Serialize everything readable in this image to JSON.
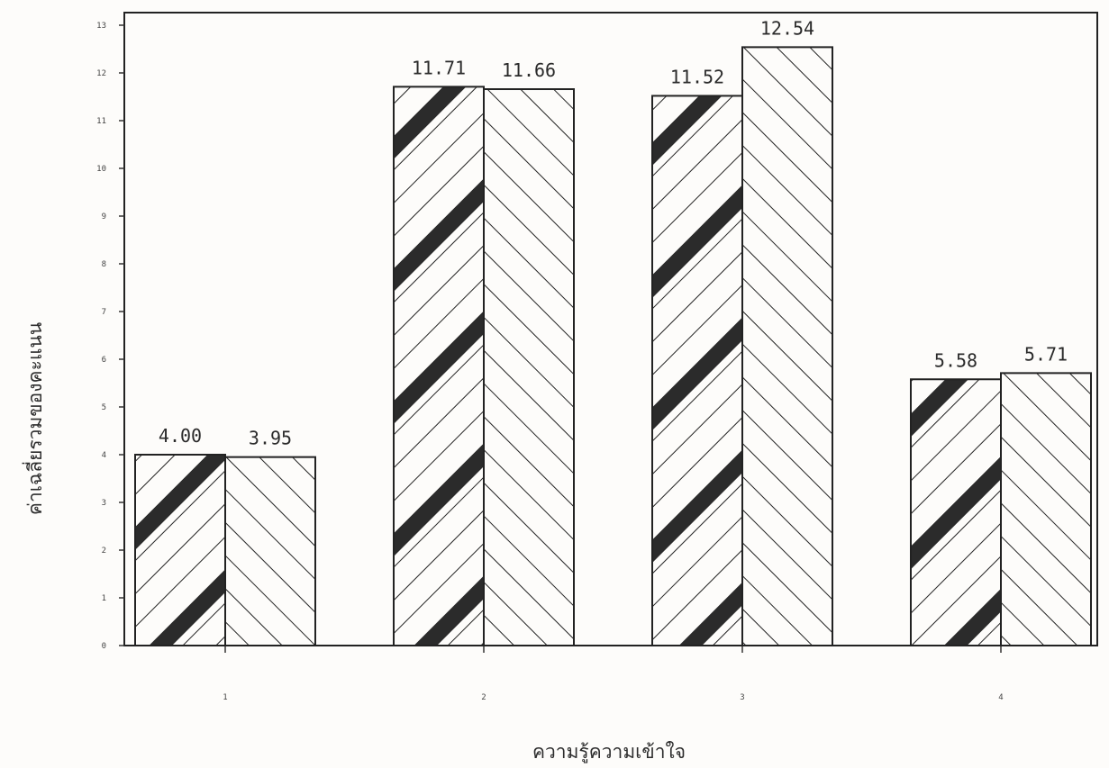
{
  "chart_data": {
    "type": "bar",
    "title": "",
    "xlabel": "ความรู้ความเข้าใจ",
    "ylabel": "ค่าเฉลี่ยรวมของคะแนน",
    "categories": [
      "1",
      "2",
      "3",
      "4"
    ],
    "series": [
      {
        "values": [
          4.0,
          11.71,
          11.52,
          5.58
        ]
      },
      {
        "values": [
          3.95,
          11.66,
          12.54,
          5.71
        ]
      }
    ],
    "data_labels": [
      [
        "4.00",
        "11.71",
        "11.52",
        "5.58"
      ],
      [
        "3.95",
        "11.66",
        "12.54",
        "5.71"
      ]
    ],
    "y_ticks": [
      "0",
      "1",
      "2",
      "3",
      "4",
      "5",
      "6",
      "7",
      "8",
      "9",
      "10",
      "11",
      "12",
      "13"
    ],
    "ylim": [
      0,
      13
    ],
    "grid": false,
    "legend": "none",
    "colors": {
      "ink": "#222222",
      "paper": "#fdfcfa",
      "heavy_stripe": "#2b2b2b"
    }
  }
}
